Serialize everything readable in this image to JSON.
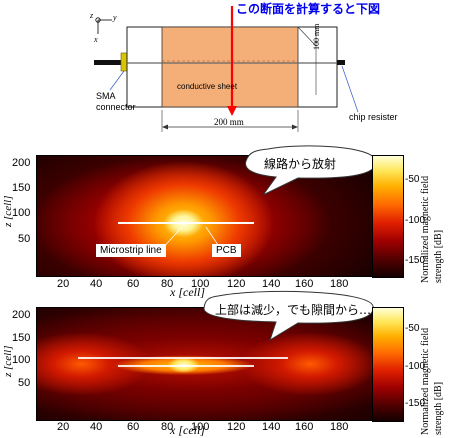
{
  "top_diagram": {
    "callout": "この断面を計算すると下図",
    "axes": {
      "z": "z",
      "y": "y",
      "x": "x"
    },
    "sma_label_1": "SMA",
    "sma_label_2": "connector",
    "sheet_label": "conductive sheet",
    "chip_label": "chip resister",
    "dim_width": "200 mm",
    "dim_height": "100 mm",
    "colors": {
      "sheet": "#f4ae78",
      "callout": "#ff0000",
      "sma": "#d8c400"
    }
  },
  "plot1": {
    "bubble": "線路から放射",
    "ylabel": "z [cell]",
    "xlabel": "x [cell]",
    "label_microstrip": "Microstrip line",
    "label_pcb": "PCB",
    "colorbar_label_1": "Normalized magnetic field",
    "colorbar_label_2": "strength [dB]",
    "xticks": [
      "20",
      "40",
      "60",
      "80",
      "100",
      "120",
      "140",
      "160",
      "180"
    ],
    "yticks": [
      "200",
      "150",
      "100",
      "50"
    ],
    "cbticks": [
      "-50",
      "-100",
      "-150"
    ]
  },
  "plot2": {
    "bubble": "上部は減少，でも隙間から…",
    "ylabel": "z [cell]",
    "xlabel": "x [cell]",
    "colorbar_label_1": "Normalized magnetic field",
    "colorbar_label_2": "strength [dB]",
    "xticks": [
      "20",
      "40",
      "60",
      "80",
      "100",
      "120",
      "140",
      "160",
      "180"
    ],
    "yticks": [
      "200",
      "150",
      "100",
      "50"
    ],
    "cbticks": [
      "-50",
      "-100",
      "-150"
    ]
  }
}
